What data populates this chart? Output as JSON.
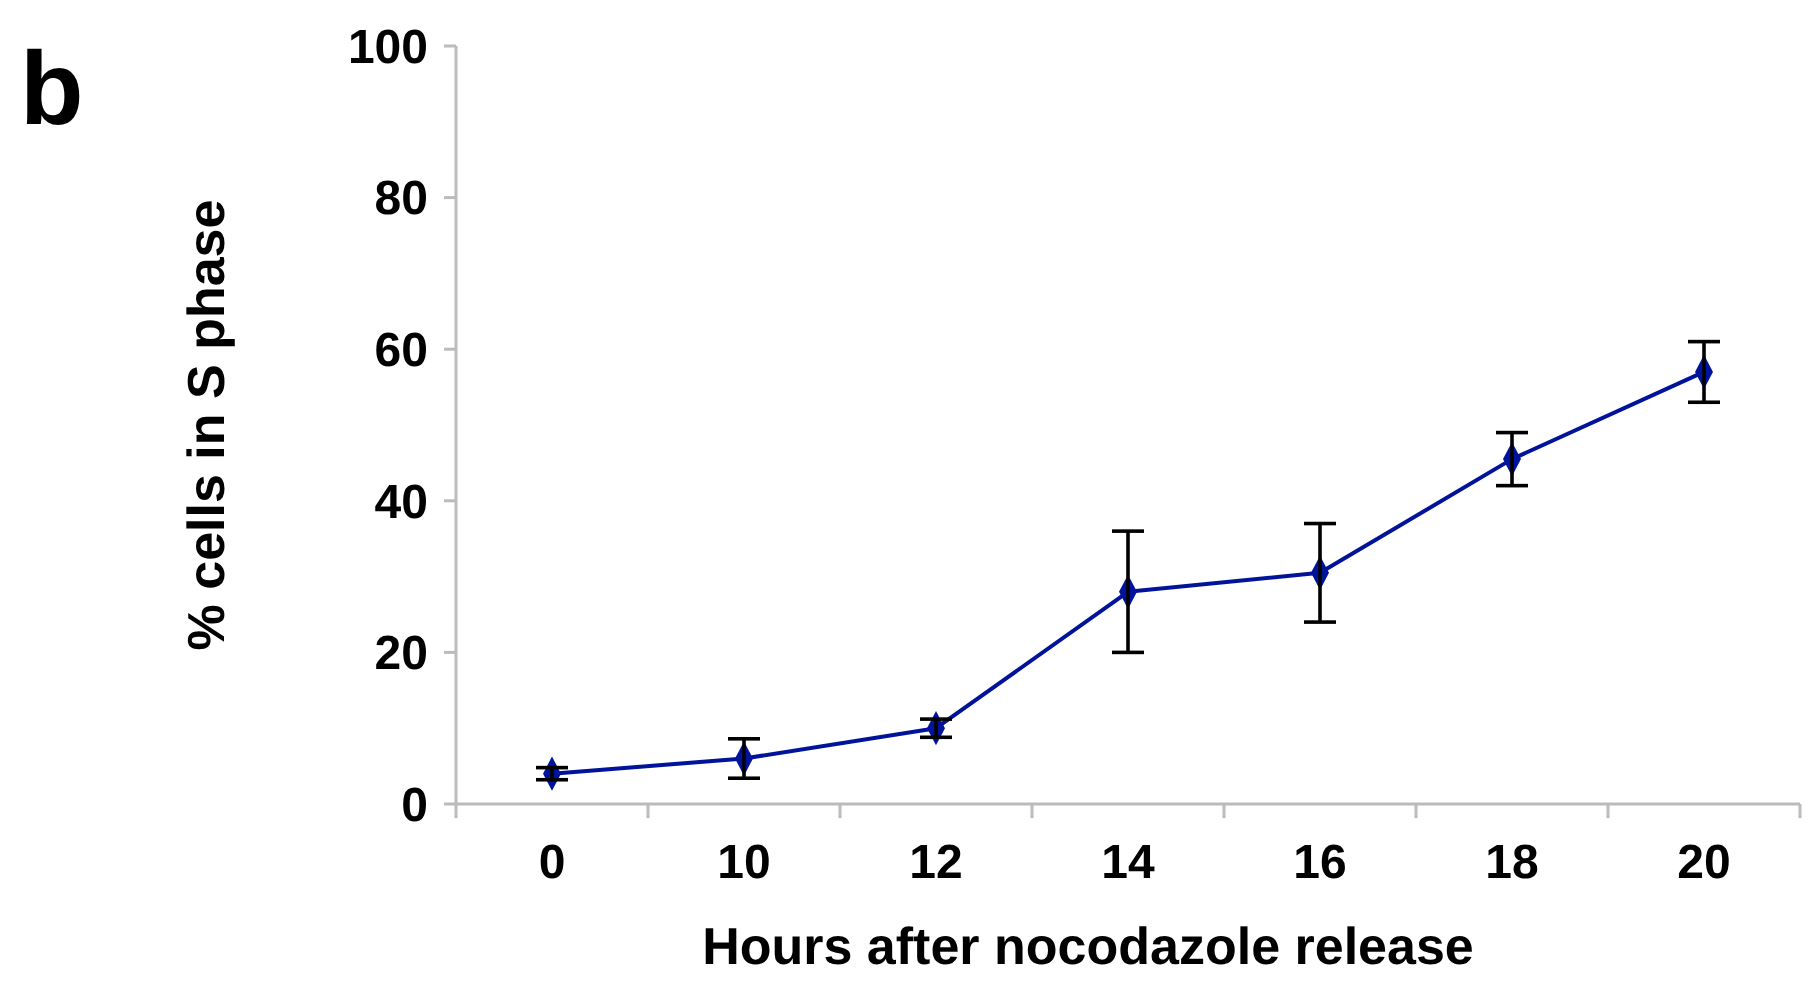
{
  "chart_data": {
    "type": "line",
    "xlabel": "Hours after nocodazole release",
    "ylabel": "% cells in S phase",
    "annotations": [
      "b"
    ],
    "categories": [
      "0",
      "10",
      "12",
      "14",
      "16",
      "18",
      "20"
    ],
    "series": [
      {
        "color": "#00139a",
        "values": [
          4,
          6,
          10,
          28,
          30.5,
          45.5,
          57
        ],
        "errors": [
          0.8,
          2.6,
          1.2,
          8,
          6.5,
          3.5,
          4
        ]
      }
    ],
    "ylim": [
      0,
      100
    ],
    "yticks": [
      0,
      20,
      40,
      60,
      80,
      100
    ],
    "grid": false,
    "marker": "diamond",
    "line_style": "solid"
  }
}
